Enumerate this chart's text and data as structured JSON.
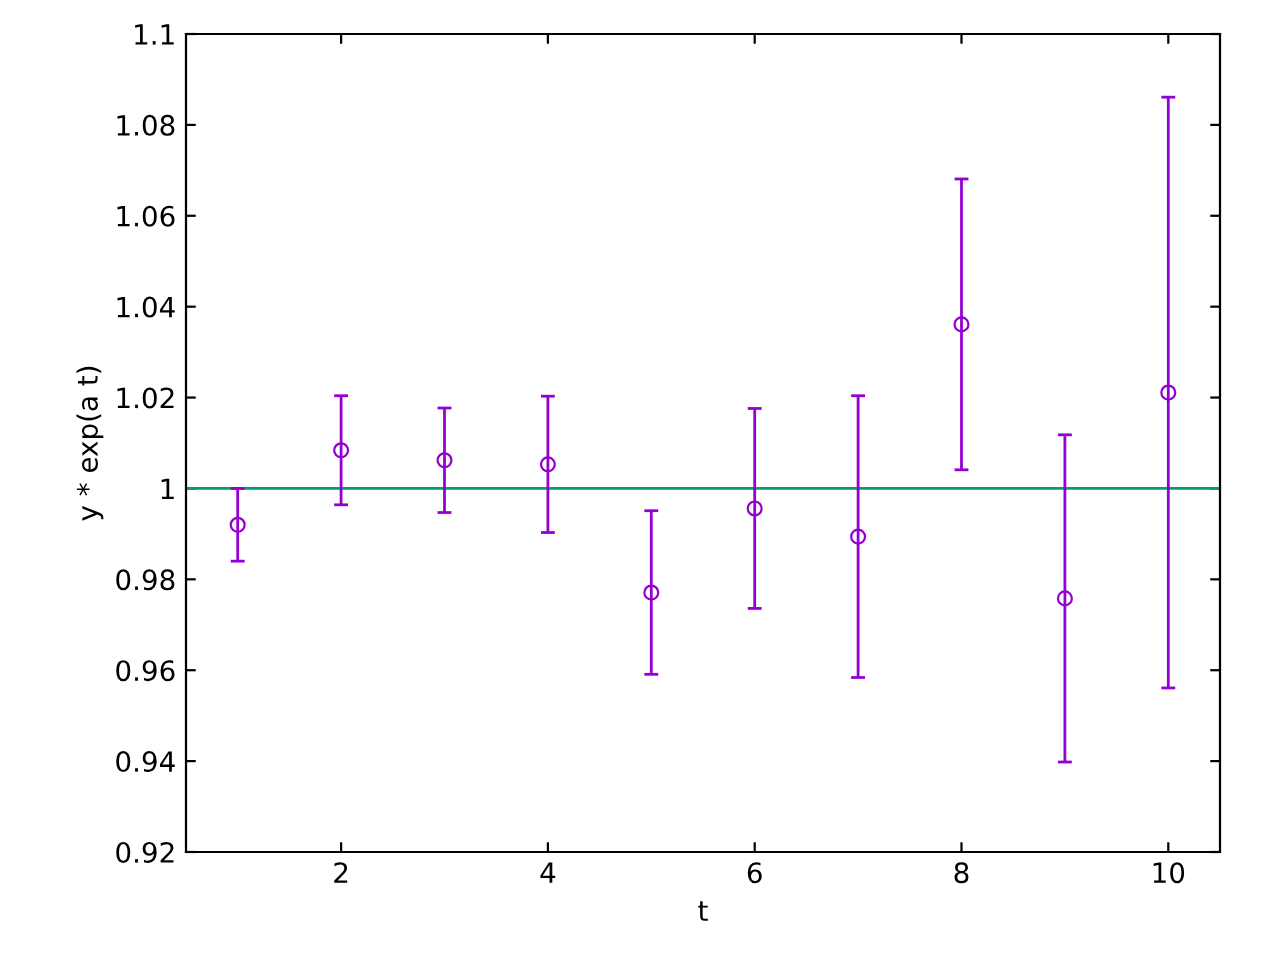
{
  "chart_data": {
    "type": "scatter",
    "xlabel": "t",
    "ylabel": "y * exp(a t)",
    "series": [
      {
        "color": "#9400d3",
        "x": [
          1,
          2,
          3,
          4,
          5,
          6,
          7,
          8,
          9,
          10
        ],
        "values": [
          0.992,
          1.0084,
          1.0062,
          1.0053,
          0.9771,
          0.9956,
          0.9894,
          1.0361,
          0.9758,
          1.0211
        ],
        "errors": [
          0.008,
          0.012,
          0.0115,
          0.015,
          0.018,
          0.022,
          0.031,
          0.032,
          0.036,
          0.065
        ]
      }
    ],
    "marker": "circle",
    "ref_lines": [
      {
        "axis": "y",
        "value": 1,
        "color": "#009e73"
      }
    ],
    "xlim": [
      0.5,
      10.5
    ],
    "xticks": [
      2,
      4,
      6,
      8,
      10
    ],
    "ylim": [
      0.92,
      1.1
    ],
    "yticks": [
      0.92,
      0.94,
      0.96,
      0.98,
      1,
      1.02,
      1.04,
      1.06,
      1.08,
      1.1
    ],
    "grid": false,
    "legend": false
  }
}
